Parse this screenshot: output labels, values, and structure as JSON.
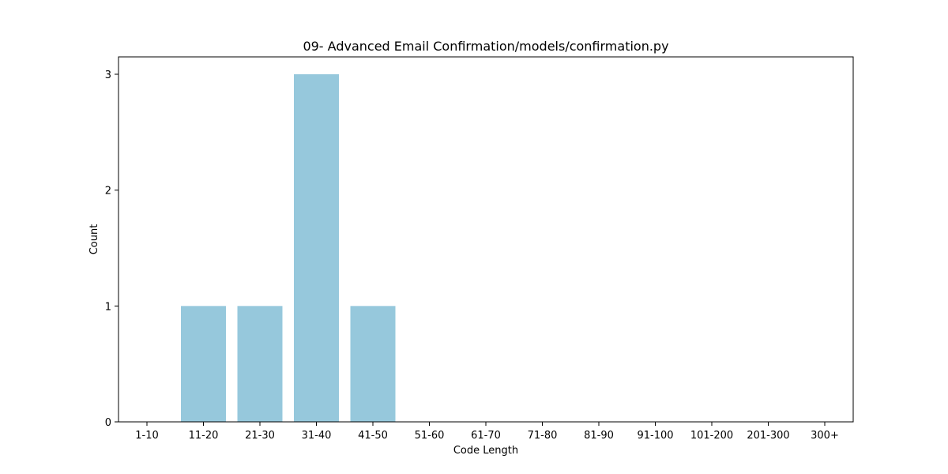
{
  "chart_data": {
    "type": "bar",
    "title": "09- Advanced Email Confirmation/models/confirmation.py",
    "xlabel": "Code Length",
    "ylabel": "Count",
    "categories": [
      "1-10",
      "11-20",
      "21-30",
      "31-40",
      "41-50",
      "51-60",
      "61-70",
      "71-80",
      "81-90",
      "91-100",
      "101-200",
      "201-300",
      "300+"
    ],
    "values": [
      0,
      1,
      1,
      3,
      1,
      0,
      0,
      0,
      0,
      0,
      0,
      0,
      0
    ],
    "ylim": [
      0,
      3.15
    ],
    "yticks": [
      0,
      1,
      2,
      3
    ],
    "grid": false,
    "bar_color": "#96c8dc"
  }
}
